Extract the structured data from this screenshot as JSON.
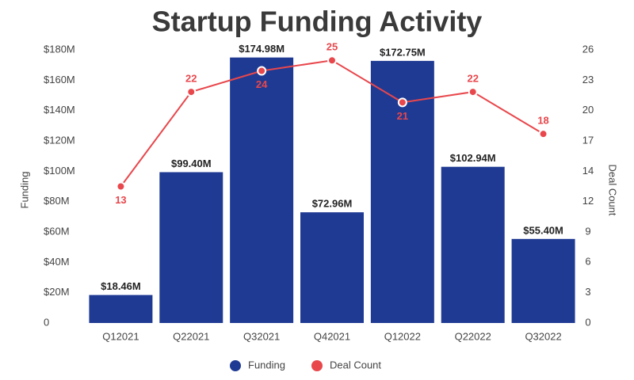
{
  "chart_data": {
    "type": "combo",
    "title": "Startup Funding Activity",
    "y_label": "Funding",
    "y2_label": "Deal Count",
    "categories": [
      "Q12021",
      "Q22021",
      "Q32021",
      "Q42021",
      "Q12022",
      "Q22022",
      "Q32022"
    ],
    "series": [
      {
        "name": "Funding",
        "type": "bar",
        "color": "#1f3a93",
        "values": [
          18.46,
          99.4,
          174.98,
          72.96,
          172.75,
          102.94,
          55.4
        ],
        "value_labels": [
          "$18.46M",
          "$99.40M",
          "$174.98M",
          "$72.96M",
          "$172.75M",
          "$102.94M",
          "$55.40M"
        ]
      },
      {
        "name": "Deal Count",
        "type": "line",
        "axis": "y2",
        "color": "#e8474c",
        "values": [
          13,
          22,
          24,
          25,
          21,
          22,
          18
        ]
      }
    ],
    "ylim": [
      0,
      180
    ],
    "yticks": [
      0,
      {
        "value": 20,
        "label": "$20M"
      },
      {
        "value": 40,
        "label": "$40M"
      },
      {
        "value": 60,
        "label": "$60M"
      },
      {
        "value": 80,
        "label": "$80M"
      },
      {
        "value": 100,
        "label": "$100M"
      },
      {
        "value": 120,
        "label": "$120M"
      },
      {
        "value": 140,
        "label": "$140M"
      },
      {
        "value": 160,
        "label": "$160M"
      },
      {
        "value": 180,
        "label": "$180M"
      }
    ],
    "y2lim": [
      0,
      26
    ],
    "y2ticks": [
      0,
      {
        "value": 2.89,
        "label": "3"
      },
      {
        "value": 5.78,
        "label": "6"
      },
      {
        "value": 8.67,
        "label": "9"
      },
      {
        "value": 11.56,
        "label": "12"
      },
      {
        "value": 14.44,
        "label": "14"
      },
      {
        "value": 17.33,
        "label": "17"
      },
      {
        "value": 20.22,
        "label": "20"
      },
      {
        "value": 23.11,
        "label": "23"
      },
      26
    ],
    "grid": false,
    "legend": "bottom"
  }
}
